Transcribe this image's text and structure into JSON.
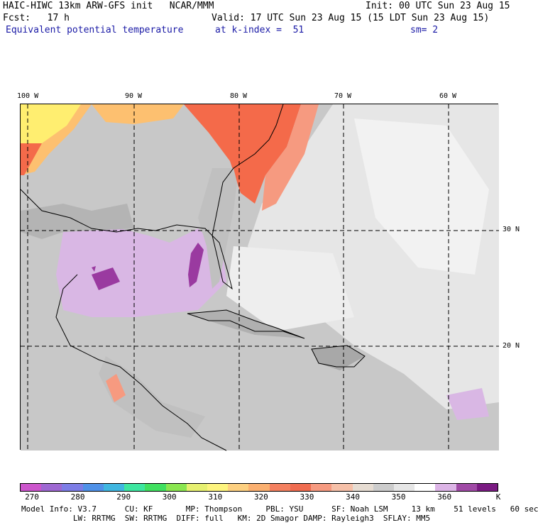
{
  "header": {
    "line1_left": "HAIC-HIWC 13km ARW-GFS init   NCAR/MMM",
    "line1_right": "Init: 00 UTC Sun 23 Aug 15",
    "line2_left": "Fcst:   17 h",
    "line2_right": "Valid: 17 UTC Sun 23 Aug 15 (15 LDT Sun 23 Aug 15)",
    "line3_left": "Equivalent potential temperature",
    "line3_mid": "at k-index =  51",
    "line3_right": "sm= 2"
  },
  "map": {
    "lon_labels": [
      "100 W",
      "90 W",
      "80 W",
      "70 W",
      "60 W"
    ],
    "lat_labels": [
      "30 N",
      "20 N"
    ],
    "colors": {
      "warm_yellow": "#ffee70",
      "orange": "#fdc070",
      "red_orange": "#f46a4a",
      "gray": "#c8c8c8",
      "light_gray": "#e6e6e6",
      "lavender": "#d9b7e4",
      "purple": "#9a3aa0"
    }
  },
  "colorbar": {
    "colors": [
      "#cc55cc",
      "#9e68d2",
      "#7d7de6",
      "#4f91e8",
      "#3fb6e0",
      "#3de6a0",
      "#40e060",
      "#8ae650",
      "#e6f070",
      "#fdf47e",
      "#fdd080",
      "#fbb070",
      "#f48060",
      "#f06c50",
      "#f69a80",
      "#f6c0a8",
      "#e6dcd2",
      "#cccccc",
      "#e6e6e6",
      "#ffffff",
      "#dcb4e6",
      "#a04aa6",
      "#7a1a82"
    ],
    "tick_labels": [
      "270",
      "280",
      "290",
      "300",
      "310",
      "320",
      "330",
      "340",
      "350",
      "360",
      "K"
    ]
  },
  "footer": {
    "line1": "Model Info: V3.7      CU: KF       MP: Thompson     PBL: YSU      SF: Noah LSM     13 km    51 levels   60 sec",
    "line2": "           LW: RRTMG  SW: RRTMG  DIFF: full   KM: 2D Smagor DAMP: Rayleigh3  SFLAY: MM5"
  }
}
